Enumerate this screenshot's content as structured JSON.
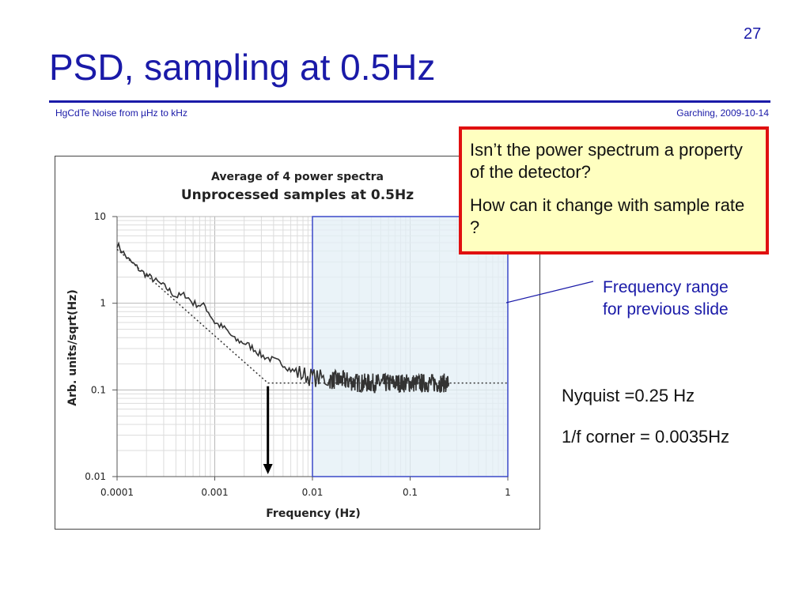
{
  "slide": {
    "number": "27",
    "title": "PSD, sampling at 0.5Hz",
    "footer_left": "HgCdTe Noise from µHz to kHz",
    "footer_right": "Garching, 2009-10-14"
  },
  "callout": {
    "question1": "Isn’t the power spectrum a property of the detector?",
    "question2": "How can it change with sample rate ?"
  },
  "annotations": {
    "range_note_line1": "Frequency range",
    "range_note_line2": "for previous slide",
    "nyquist": "Nyquist =0.25 Hz",
    "corner": "1/f corner = 0.0035Hz"
  },
  "colors": {
    "title_blue": "#1a1aa8",
    "callout_border": "#e01010",
    "callout_fill": "#ffffc0",
    "highlight_fill": "#e3eff6",
    "highlight_border": "#3a48c8"
  },
  "chart_data": {
    "type": "line",
    "title": "Average of 4 power spectra",
    "subtitle": "Unprocessed samples at 0.5Hz",
    "xlabel": "Frequency (Hz)",
    "ylabel": "Arb. units/sqrt(Hz)",
    "x_scale": "log",
    "y_scale": "log",
    "xlim": [
      0.0001,
      1
    ],
    "ylim": [
      0.01,
      10
    ],
    "x_ticks": [
      "0.0001",
      "0.001",
      "0.01",
      "0.1",
      "1"
    ],
    "y_ticks": [
      "10",
      "1",
      "0.1",
      "0.01"
    ],
    "grid": true,
    "highlight_range": [
      0.01,
      1
    ],
    "corner_arrow_x": 0.0035,
    "series": [
      {
        "color": "#333333",
        "style": "solid",
        "x": [
          0.0001,
          0.00013,
          0.00018,
          0.00025,
          0.00032,
          0.0004,
          0.0005,
          0.0006,
          0.0008,
          0.001,
          0.0013,
          0.0016,
          0.002,
          0.0025,
          0.003,
          0.004,
          0.005,
          0.006,
          0.008,
          0.01,
          0.015,
          0.02,
          0.03,
          0.05,
          0.08,
          0.12,
          0.18,
          0.25
        ],
        "y": [
          4.8,
          3.2,
          2.3,
          1.8,
          1.5,
          1.2,
          1.25,
          1.0,
          0.92,
          0.6,
          0.5,
          0.38,
          0.35,
          0.3,
          0.25,
          0.22,
          0.2,
          0.17,
          0.15,
          0.14,
          0.13,
          0.13,
          0.12,
          0.12,
          0.12,
          0.12,
          0.12,
          0.12
        ]
      },
      {
        "color": "#333333",
        "style": "dotted",
        "x": [
          0.0001,
          0.0035,
          1
        ],
        "y": [
          4.2,
          0.12,
          0.12
        ]
      }
    ]
  }
}
